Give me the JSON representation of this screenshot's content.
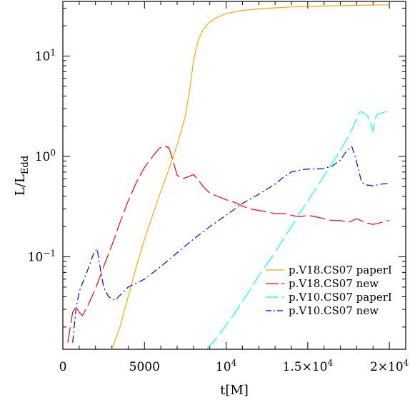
{
  "chart_data": {
    "type": "line",
    "xlabel": "t[M]",
    "ylabel": "L/L",
    "ylabel_sub": "Edd",
    "xlim": [
      0,
      21000
    ],
    "ylim": [
      0.012,
      35
    ],
    "y_scale": "log",
    "x_ticks": [
      {
        "value": 0,
        "label": "0"
      },
      {
        "value": 5000,
        "label": "5000"
      },
      {
        "value": 10000,
        "label": "10",
        "sup": "4"
      },
      {
        "value": 15000,
        "label": "1.5×10",
        "sup": "4"
      },
      {
        "value": 20000,
        "label": "2×10",
        "sup": "4"
      }
    ],
    "y_ticks": [
      {
        "value": 0.1,
        "label": "10",
        "sup": "−1"
      },
      {
        "value": 1,
        "label": "10",
        "sup": "0"
      },
      {
        "value": 10,
        "label": "10",
        "sup": "1"
      }
    ],
    "grid": false,
    "legend_position": "bottom-right",
    "series": [
      {
        "name": "p.V18.CS07 paperI",
        "color": "#ffa500",
        "dash": "solid",
        "x": [
          2500,
          3000,
          3500,
          4000,
          4500,
          5000,
          5500,
          6000,
          6500,
          7000,
          7500,
          7800,
          8000,
          8300,
          8600,
          9000,
          9500,
          10000,
          11000,
          12000,
          13000,
          14000,
          15000,
          16000,
          17000,
          18000,
          19000,
          20000
        ],
        "y": [
          0.008,
          0.012,
          0.02,
          0.04,
          0.08,
          0.15,
          0.26,
          0.45,
          0.75,
          1.3,
          2.5,
          5.0,
          9.0,
          14.5,
          18.5,
          22.0,
          24.5,
          26.5,
          28.5,
          29.5,
          30.2,
          30.8,
          31.2,
          31.5,
          31.8,
          32.0,
          32.2,
          32.4
        ]
      },
      {
        "name": "p.V18.CS07 new",
        "color": "#ff0000",
        "dash": "long-dash",
        "x": [
          300,
          600,
          800,
          1000,
          1200,
          1500,
          2000,
          2500,
          3000,
          3500,
          4000,
          4500,
          5000,
          5500,
          5900,
          6200,
          6500,
          6800,
          7000,
          7300,
          7600,
          8000,
          8300,
          8600,
          9000,
          9500,
          10000,
          10500,
          11000,
          11500,
          12000,
          12500,
          13000,
          13500,
          14000,
          14500,
          15000,
          15500,
          16000,
          16500,
          17000,
          17500,
          18000,
          18500,
          19000,
          19500,
          20000
        ],
        "y": [
          0.014,
          0.028,
          0.032,
          0.028,
          0.026,
          0.032,
          0.048,
          0.08,
          0.13,
          0.22,
          0.36,
          0.55,
          0.78,
          1.0,
          1.2,
          1.28,
          1.22,
          0.85,
          0.65,
          0.6,
          0.62,
          0.66,
          0.58,
          0.5,
          0.43,
          0.4,
          0.37,
          0.35,
          0.32,
          0.3,
          0.29,
          0.28,
          0.27,
          0.27,
          0.26,
          0.25,
          0.26,
          0.25,
          0.24,
          0.23,
          0.23,
          0.22,
          0.24,
          0.22,
          0.21,
          0.22,
          0.23
        ]
      },
      {
        "name": "p.V10.CS07 paperI",
        "color": "#00ffff",
        "dash": "long-dash",
        "x": [
          8800,
          9500,
          10000,
          10500,
          11000,
          11500,
          12000,
          12500,
          13000,
          13500,
          14000,
          14500,
          15000,
          15500,
          16000,
          16500,
          17000,
          17500,
          17800,
          18000,
          18200,
          18400,
          18700,
          18900,
          19000,
          19200,
          19500,
          19800,
          20000
        ],
        "y": [
          0.012,
          0.016,
          0.021,
          0.027,
          0.036,
          0.048,
          0.065,
          0.085,
          0.11,
          0.15,
          0.2,
          0.27,
          0.36,
          0.48,
          0.64,
          0.86,
          1.15,
          1.6,
          2.0,
          2.4,
          2.8,
          2.75,
          2.5,
          2.0,
          1.8,
          2.6,
          2.7,
          2.8,
          2.9
        ]
      },
      {
        "name": "p.V10.CS07 new",
        "color": "#0000ff",
        "dash": "dash-dot",
        "x": [
          600,
          800,
          1000,
          1300,
          1600,
          1900,
          2100,
          2300,
          2500,
          2800,
          3200,
          3600,
          4000,
          5000,
          6000,
          7000,
          8000,
          9000,
          10000,
          11000,
          12000,
          13000,
          13500,
          14000,
          14500,
          15000,
          15500,
          16000,
          16500,
          17000,
          17400,
          17700,
          17900,
          18100,
          18300,
          18600,
          19000,
          19500,
          20000
        ],
        "y": [
          0.014,
          0.03,
          0.045,
          0.06,
          0.08,
          0.11,
          0.12,
          0.075,
          0.05,
          0.04,
          0.037,
          0.043,
          0.05,
          0.06,
          0.08,
          0.11,
          0.15,
          0.2,
          0.26,
          0.34,
          0.42,
          0.53,
          0.62,
          0.7,
          0.73,
          0.75,
          0.75,
          0.76,
          0.8,
          0.92,
          1.15,
          1.25,
          1.0,
          0.75,
          0.55,
          0.52,
          0.51,
          0.53,
          0.54
        ]
      }
    ]
  }
}
